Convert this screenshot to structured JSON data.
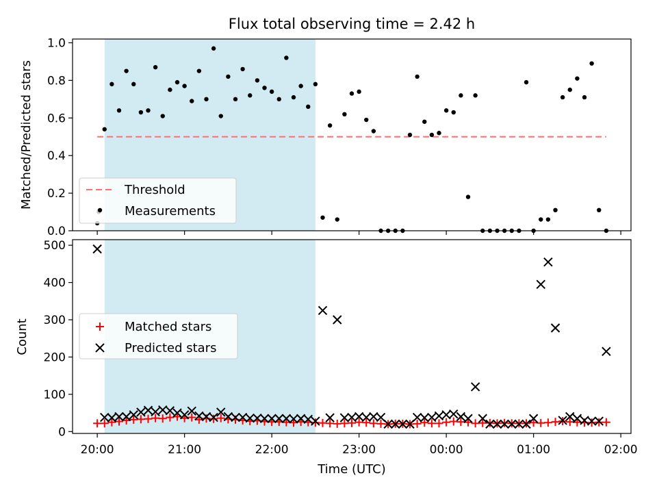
{
  "figure": {
    "title": "Flux total observing time = 2.42 h",
    "xlabel": "Time (UTC)",
    "x_ticks": [
      {
        "value": 0,
        "label": "20:00"
      },
      {
        "value": 60,
        "label": "21:00"
      },
      {
        "value": 120,
        "label": "22:00"
      },
      {
        "value": 180,
        "label": "23:00"
      },
      {
        "value": 240,
        "label": "00:00"
      },
      {
        "value": 300,
        "label": "01:00"
      },
      {
        "value": 360,
        "label": "02:00"
      }
    ],
    "colors": {
      "shade": "#add8e6",
      "threshold": "#ff6f6f",
      "measurement": "#000000",
      "matched": "#ff0000",
      "predicted": "#000000"
    }
  },
  "chart_data": [
    {
      "type": "scatter",
      "ylabel": "Matched/Predicted stars",
      "xlim": [
        -17,
        367
      ],
      "ylim": [
        0,
        1.02
      ],
      "y_ticks": [
        0.0,
        0.2,
        0.4,
        0.6,
        0.8,
        1.0
      ],
      "y_tick_labels": [
        "0.0",
        "0.2",
        "0.4",
        "0.6",
        "0.8",
        "1.0"
      ],
      "shaded_span": [
        5,
        150
      ],
      "threshold": {
        "name": "Threshold",
        "y": 0.5,
        "x": [
          0,
          350
        ]
      },
      "legend": {
        "placement": "lower-left",
        "entries": [
          "Threshold",
          "Measurements"
        ]
      },
      "series": [
        {
          "name": "Measurements",
          "x": [
            0,
            1,
            5,
            10,
            15,
            20,
            25,
            30,
            35,
            40,
            45,
            50,
            55,
            60,
            65,
            70,
            75,
            80,
            85,
            90,
            95,
            100,
            105,
            110,
            115,
            120,
            125,
            130,
            135,
            140,
            145,
            150,
            155,
            160,
            165,
            170,
            175,
            180,
            185,
            190,
            195,
            200,
            205,
            210,
            215,
            220,
            225,
            230,
            235,
            240,
            245,
            250,
            255,
            260,
            265,
            270,
            275,
            280,
            285,
            290,
            295,
            300,
            305,
            310,
            315,
            320,
            325,
            330,
            335,
            340,
            345,
            350
          ],
          "y": [
            0.04,
            0.1,
            0.54,
            0.78,
            0.64,
            0.85,
            0.78,
            0.63,
            0.64,
            0.87,
            0.61,
            0.75,
            0.79,
            0.77,
            0.69,
            0.85,
            0.7,
            0.97,
            0.61,
            0.82,
            0.7,
            0.86,
            0.72,
            0.8,
            0.76,
            0.74,
            0.7,
            0.92,
            0.71,
            0.77,
            0.66,
            0.78,
            0.07,
            0.56,
            0.06,
            0.62,
            0.73,
            0.74,
            0.59,
            0.53,
            0.0,
            0.0,
            0.0,
            0.0,
            0.51,
            0.82,
            0.58,
            0.51,
            0.52,
            0.64,
            0.63,
            0.72,
            0.18,
            0.72,
            0.0,
            0.0,
            0.0,
            0.0,
            0.0,
            0.0,
            0.79,
            0.0,
            0.06,
            0.06,
            0.11,
            0.71,
            0.75,
            0.81,
            0.71,
            0.89,
            0.11,
            0.0
          ]
        }
      ]
    },
    {
      "type": "scatter",
      "ylabel": "Count",
      "xlim": [
        -17,
        367
      ],
      "ylim": [
        -5,
        515
      ],
      "y_ticks": [
        0,
        100,
        200,
        300,
        400,
        500
      ],
      "y_tick_labels": [
        "0",
        "100",
        "200",
        "300",
        "400",
        "500"
      ],
      "shaded_span": [
        5,
        150
      ],
      "legend": {
        "placement": "center-left",
        "entries": [
          "Matched stars",
          "Predicted stars"
        ]
      },
      "series": [
        {
          "name": "Matched stars",
          "marker": "+",
          "x": [
            0,
            5,
            10,
            15,
            20,
            25,
            30,
            35,
            40,
            45,
            50,
            55,
            60,
            65,
            70,
            75,
            80,
            85,
            90,
            95,
            100,
            105,
            110,
            115,
            120,
            125,
            130,
            135,
            140,
            145,
            150,
            155,
            160,
            165,
            170,
            175,
            180,
            185,
            190,
            195,
            200,
            205,
            210,
            215,
            220,
            225,
            230,
            235,
            240,
            245,
            250,
            255,
            260,
            265,
            270,
            275,
            280,
            285,
            290,
            295,
            300,
            305,
            310,
            315,
            320,
            325,
            330,
            335,
            340,
            345,
            350
          ],
          "y": [
            22,
            22,
            25,
            27,
            30,
            32,
            33,
            34,
            36,
            35,
            38,
            40,
            36,
            38,
            32,
            35,
            34,
            36,
            33,
            32,
            30,
            28,
            29,
            27,
            26,
            26,
            25,
            24,
            26,
            25,
            24,
            23,
            22,
            21,
            22,
            23,
            25,
            24,
            22,
            21,
            20,
            21,
            21,
            20,
            21,
            24,
            22,
            22,
            25,
            27,
            26,
            25,
            22,
            23,
            23,
            22,
            23,
            22,
            22,
            22,
            24,
            23,
            24,
            26,
            28,
            26,
            25,
            24,
            24,
            25,
            25
          ]
        },
        {
          "name": "Predicted stars",
          "marker": "x",
          "x": [
            0,
            5,
            10,
            15,
            20,
            25,
            30,
            35,
            40,
            45,
            50,
            55,
            60,
            65,
            70,
            75,
            80,
            85,
            90,
            95,
            100,
            105,
            110,
            115,
            120,
            125,
            130,
            135,
            140,
            145,
            150,
            155,
            160,
            165,
            170,
            175,
            180,
            185,
            190,
            195,
            200,
            205,
            210,
            215,
            220,
            225,
            230,
            235,
            240,
            245,
            250,
            255,
            260,
            265,
            270,
            275,
            280,
            285,
            290,
            295,
            300,
            305,
            310,
            315,
            320,
            325,
            330,
            335,
            340,
            345,
            350
          ],
          "y": [
            490,
            38,
            37,
            40,
            40,
            45,
            52,
            57,
            53,
            58,
            56,
            50,
            45,
            55,
            42,
            40,
            38,
            52,
            40,
            38,
            38,
            36,
            36,
            35,
            35,
            35,
            35,
            34,
            35,
            33,
            28,
            325,
            37,
            300,
            37,
            38,
            40,
            38,
            40,
            38,
            20,
            20,
            20,
            20,
            38,
            37,
            38,
            42,
            45,
            47,
            40,
            35,
            120,
            35,
            20,
            20,
            20,
            20,
            20,
            20,
            35,
            395,
            455,
            278,
            30,
            40,
            35,
            30,
            28,
            28,
            215
          ]
        }
      ]
    }
  ]
}
